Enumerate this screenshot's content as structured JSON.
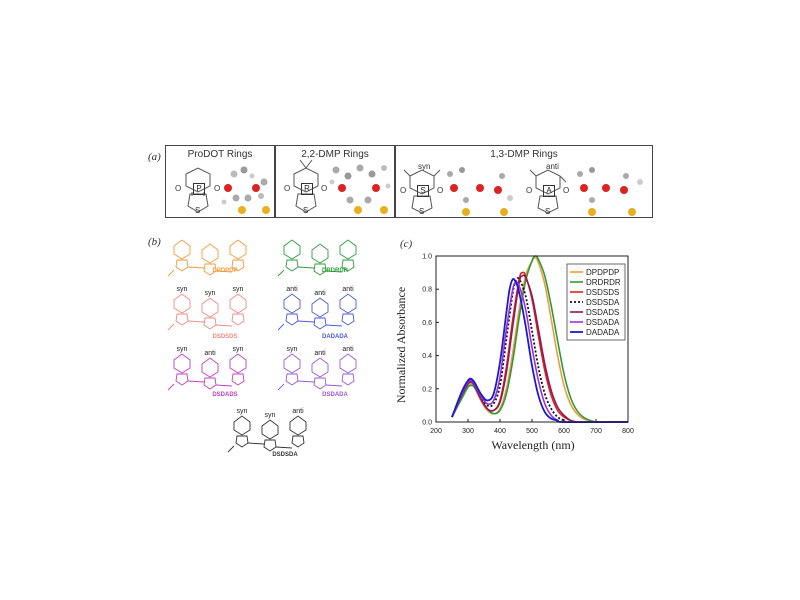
{
  "panel_a": {
    "label": "(a)",
    "boxes": [
      {
        "title": "ProDOT Rings",
        "letter": "P"
      },
      {
        "title": "2,2-DMP Rings",
        "letter": "R"
      },
      {
        "title": "1,3-DMP Rings",
        "letter_syn": "S",
        "letter_anti": "A",
        "syn": "syn",
        "anti": "anti"
      }
    ],
    "atom_o": "O",
    "atom_s": "S"
  },
  "panel_b": {
    "label": "(b)",
    "molecules": [
      {
        "name": "DPDPDP",
        "color": "#f39a3c",
        "tags": [
          "",
          "",
          ""
        ]
      },
      {
        "name": "DRDRDR",
        "color": "#2e9b3a",
        "tags": [
          "",
          "",
          ""
        ]
      },
      {
        "name": "DSDSDS",
        "color": "#f08a84",
        "tags": [
          "syn",
          "syn",
          "syn"
        ]
      },
      {
        "name": "DADADA",
        "color": "#4a5ad8",
        "tags": [
          "anti",
          "anti",
          "anti"
        ]
      },
      {
        "name": "DSDADS",
        "color": "#c040c0",
        "tags": [
          "syn",
          "anti",
          "syn"
        ]
      },
      {
        "name": "DSDADA",
        "color": "#9b59d6",
        "tags": [
          "syn",
          "anti",
          "anti"
        ]
      },
      {
        "name": "DSDSDA",
        "color": "#333333",
        "tags": [
          "syn",
          "syn",
          "anti"
        ]
      }
    ]
  },
  "panel_c": {
    "label": "(c)"
  },
  "chart_data": {
    "type": "line",
    "xlabel": "Wavelength (nm)",
    "ylabel": "Normalized Absorbance",
    "xlim": [
      200,
      800
    ],
    "ylim": [
      0.0,
      1.0
    ],
    "xticks": [
      "200",
      "300",
      "400",
      "500",
      "600",
      "700",
      "800"
    ],
    "yticks": [
      "0.0",
      "0.2",
      "0.4",
      "0.6",
      "0.8",
      "1.0"
    ],
    "legend_position": "top-right",
    "series": [
      {
        "name": "DPDPDP",
        "color": "#f39a3c",
        "dash": "",
        "width": 1.6,
        "x": [
          250,
          280,
          300,
          310,
          320,
          340,
          360,
          380,
          400,
          420,
          440,
          460,
          480,
          500,
          510,
          520,
          540,
          560,
          580,
          600,
          620,
          640,
          660,
          680,
          700,
          720,
          740,
          760,
          780,
          800
        ],
        "y": [
          0.03,
          0.15,
          0.22,
          0.23,
          0.21,
          0.13,
          0.07,
          0.05,
          0.08,
          0.2,
          0.42,
          0.68,
          0.88,
          0.97,
          0.99,
          0.96,
          0.83,
          0.62,
          0.4,
          0.22,
          0.11,
          0.05,
          0.02,
          0.01,
          0,
          0,
          0,
          0,
          0,
          0
        ]
      },
      {
        "name": "DRDRDR",
        "color": "#2e9b3a",
        "dash": "",
        "width": 1.6,
        "x": [
          250,
          280,
          300,
          310,
          320,
          340,
          360,
          380,
          400,
          420,
          440,
          460,
          480,
          500,
          510,
          520,
          540,
          560,
          580,
          600,
          620,
          640,
          660,
          680,
          700,
          720,
          740,
          760,
          780,
          800
        ],
        "y": [
          0.03,
          0.14,
          0.21,
          0.22,
          0.21,
          0.14,
          0.08,
          0.05,
          0.07,
          0.17,
          0.37,
          0.63,
          0.85,
          0.97,
          1.0,
          0.98,
          0.88,
          0.7,
          0.49,
          0.29,
          0.15,
          0.07,
          0.03,
          0.01,
          0,
          0,
          0,
          0,
          0,
          0
        ]
      },
      {
        "name": "DSDSDS",
        "color": "#e02020",
        "dash": "",
        "width": 1.6,
        "x": [
          250,
          280,
          300,
          310,
          320,
          340,
          360,
          380,
          400,
          420,
          440,
          460,
          470,
          480,
          500,
          520,
          540,
          560,
          580,
          600,
          620,
          640,
          660,
          680,
          700,
          800
        ],
        "y": [
          0.03,
          0.16,
          0.23,
          0.24,
          0.22,
          0.14,
          0.08,
          0.07,
          0.13,
          0.33,
          0.62,
          0.86,
          0.9,
          0.88,
          0.74,
          0.52,
          0.31,
          0.16,
          0.07,
          0.03,
          0.01,
          0,
          0,
          0,
          0,
          0
        ]
      },
      {
        "name": "DSDSDA",
        "color": "#111111",
        "dash": "2,2",
        "width": 1.8,
        "x": [
          250,
          280,
          300,
          310,
          320,
          340,
          360,
          380,
          400,
          420,
          440,
          450,
          460,
          480,
          500,
          520,
          540,
          560,
          580,
          600,
          620,
          800
        ],
        "y": [
          0.03,
          0.17,
          0.24,
          0.25,
          0.23,
          0.15,
          0.1,
          0.11,
          0.22,
          0.5,
          0.78,
          0.85,
          0.86,
          0.76,
          0.55,
          0.33,
          0.17,
          0.08,
          0.03,
          0.01,
          0,
          0
        ]
      },
      {
        "name": "DSDADS",
        "color": "#8b1a5a",
        "dash": "",
        "width": 1.6,
        "x": [
          250,
          280,
          300,
          310,
          320,
          340,
          360,
          380,
          400,
          420,
          440,
          460,
          470,
          480,
          500,
          520,
          540,
          560,
          580,
          600,
          620,
          640,
          660,
          800
        ],
        "y": [
          0.03,
          0.16,
          0.23,
          0.24,
          0.22,
          0.14,
          0.08,
          0.07,
          0.12,
          0.3,
          0.58,
          0.84,
          0.88,
          0.87,
          0.76,
          0.56,
          0.35,
          0.19,
          0.09,
          0.04,
          0.01,
          0,
          0,
          0
        ]
      },
      {
        "name": "DSDADA",
        "color": "#9b30e0",
        "dash": "",
        "width": 1.6,
        "x": [
          250,
          280,
          300,
          310,
          320,
          340,
          360,
          380,
          400,
          420,
          440,
          450,
          460,
          480,
          500,
          520,
          540,
          560,
          580,
          600,
          800
        ],
        "y": [
          0.03,
          0.17,
          0.24,
          0.25,
          0.23,
          0.16,
          0.11,
          0.13,
          0.27,
          0.56,
          0.8,
          0.84,
          0.82,
          0.68,
          0.45,
          0.25,
          0.11,
          0.04,
          0.01,
          0,
          0
        ]
      },
      {
        "name": "DADADA",
        "color": "#1a1ad0",
        "dash": "",
        "width": 1.8,
        "x": [
          250,
          280,
          300,
          310,
          320,
          340,
          360,
          380,
          400,
          420,
          430,
          440,
          450,
          460,
          480,
          500,
          520,
          540,
          560,
          580,
          600,
          800
        ],
        "y": [
          0.03,
          0.18,
          0.25,
          0.26,
          0.24,
          0.17,
          0.13,
          0.17,
          0.36,
          0.66,
          0.8,
          0.86,
          0.84,
          0.78,
          0.58,
          0.34,
          0.16,
          0.06,
          0.02,
          0.01,
          0,
          0
        ]
      }
    ]
  }
}
